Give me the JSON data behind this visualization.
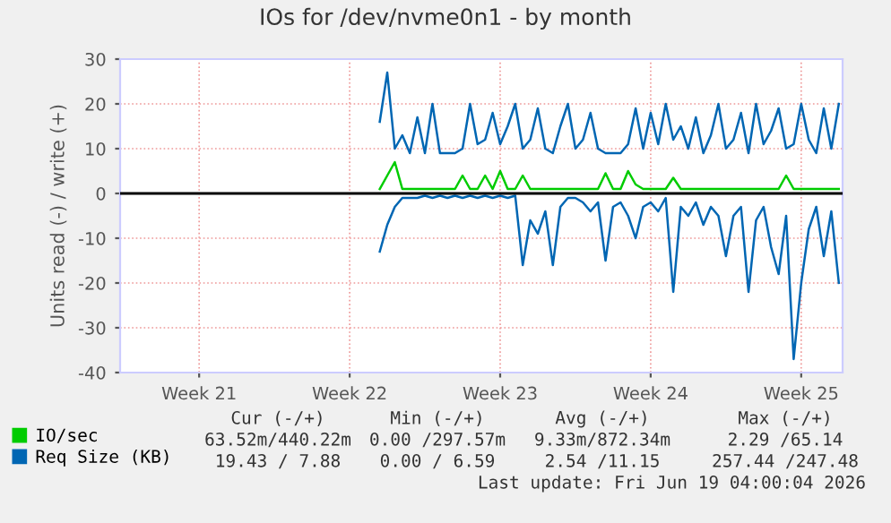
{
  "chart_data": {
    "type": "line",
    "title": "IOs for /dev/nvme0n1 - by month",
    "ylabel": "Units read (-) / write (+)",
    "categories": [
      null,
      null,
      null,
      null,
      null,
      null,
      null,
      null,
      null,
      null,
      "Week 21",
      null,
      null,
      null,
      null,
      null,
      null,
      null,
      null,
      null,
      null,
      null,
      null,
      null,
      null,
      null,
      null,
      null,
      null,
      null,
      "Week 22",
      null,
      null,
      null,
      null,
      null,
      null,
      null,
      null,
      null,
      null,
      null,
      null,
      null,
      null,
      null,
      null,
      null,
      null,
      null,
      "Week 23",
      null,
      null,
      null,
      null,
      null,
      null,
      null,
      null,
      null,
      null,
      null,
      null,
      null,
      null,
      null,
      null,
      null,
      null,
      null,
      "Week 24",
      null,
      null,
      null,
      null,
      null,
      null,
      null,
      null,
      null,
      null,
      null,
      null,
      null,
      null,
      null,
      null,
      null,
      null,
      null,
      "Week 25",
      null,
      null,
      null,
      null,
      null
    ],
    "series": [
      {
        "name": "IO/sec",
        "color": "#00cc00",
        "values": [
          null,
          null,
          null,
          null,
          null,
          null,
          null,
          null,
          null,
          null,
          null,
          null,
          null,
          null,
          null,
          null,
          null,
          null,
          null,
          null,
          null,
          null,
          null,
          null,
          null,
          null,
          null,
          null,
          null,
          null,
          null,
          null,
          null,
          null,
          1,
          4,
          7,
          1,
          1,
          1,
          1,
          1,
          1,
          1,
          1,
          4,
          1,
          1,
          4,
          1,
          5,
          1,
          1,
          4,
          1,
          1,
          1,
          1,
          1,
          1,
          1,
          1,
          1,
          1,
          4.5,
          1,
          1,
          5,
          2,
          1,
          1,
          1,
          1,
          3.5,
          1,
          1,
          1,
          1,
          1,
          1,
          1,
          1,
          1,
          1,
          1,
          1,
          1,
          1,
          4,
          1,
          1,
          1,
          1,
          1,
          1,
          1
        ]
      },
      {
        "name": "Req Size (KB)",
        "color": "#0066b3",
        "values": [
          null,
          null,
          null,
          null,
          null,
          null,
          null,
          null,
          null,
          null,
          null,
          null,
          null,
          null,
          null,
          null,
          null,
          null,
          null,
          null,
          null,
          null,
          null,
          null,
          null,
          null,
          null,
          null,
          null,
          null,
          null,
          null,
          null,
          null,
          16,
          27,
          10,
          13,
          9,
          17,
          9,
          20,
          9,
          9,
          9,
          10,
          20,
          11,
          12,
          18,
          11,
          15,
          20,
          10,
          12,
          19,
          10,
          9,
          15,
          20,
          10,
          12,
          18,
          10,
          9,
          9,
          9,
          11,
          19,
          10,
          18,
          11,
          20,
          12,
          15,
          10,
          17,
          9,
          13,
          20,
          10,
          12,
          18,
          9,
          20,
          11,
          14,
          19,
          10,
          11,
          20,
          12,
          9,
          19,
          10,
          20
        ]
      },
      {
        "color": "#0066b3",
        "values": [
          null,
          null,
          null,
          null,
          null,
          null,
          null,
          null,
          null,
          null,
          null,
          null,
          null,
          null,
          null,
          null,
          null,
          null,
          null,
          null,
          null,
          null,
          null,
          null,
          null,
          null,
          null,
          null,
          null,
          null,
          null,
          null,
          null,
          null,
          -13,
          -7,
          -3,
          -1,
          -1,
          -1,
          -0.5,
          -1,
          -0.5,
          -1,
          -0.5,
          -1,
          -0.5,
          -1,
          -0.5,
          -1,
          -0.5,
          -1,
          -0.5,
          -16,
          -6,
          -9,
          -4,
          -16,
          -3,
          -1,
          -1,
          -2,
          -4,
          -2,
          -15,
          -3,
          -2,
          -5,
          -10,
          -3,
          -2,
          -4,
          -1,
          -22,
          -3,
          -5,
          -2,
          -7,
          -3,
          -5,
          -14,
          -5,
          -3,
          -22,
          -6,
          -3,
          -12,
          -18,
          -5,
          -37,
          -20,
          -8,
          -3,
          -14,
          -4,
          -20
        ]
      }
    ],
    "ylim": [
      -40,
      30
    ],
    "yticks": [
      -40,
      -30,
      -20,
      -10,
      0,
      10,
      20,
      30
    ],
    "ref_lines": [
      {
        "axis": "y",
        "value": 0,
        "color": "#000000"
      }
    ],
    "grid": true,
    "legend": "bottom left",
    "annotations": [
      "Cur (-/+)",
      "Min (-/+)",
      "Avg (-/+)",
      "Max (-/+)",
      "63.52m/440.22m",
      "0.00 /297.57m",
      "9.33m/872.34m",
      "2.29 /65.14",
      "19.43 / 7.88",
      "0.00 / 6.59",
      "2.54 /11.15",
      "257.44 /247.48",
      "Last update: Fri Jun 19 04:00:04 2026"
    ]
  }
}
